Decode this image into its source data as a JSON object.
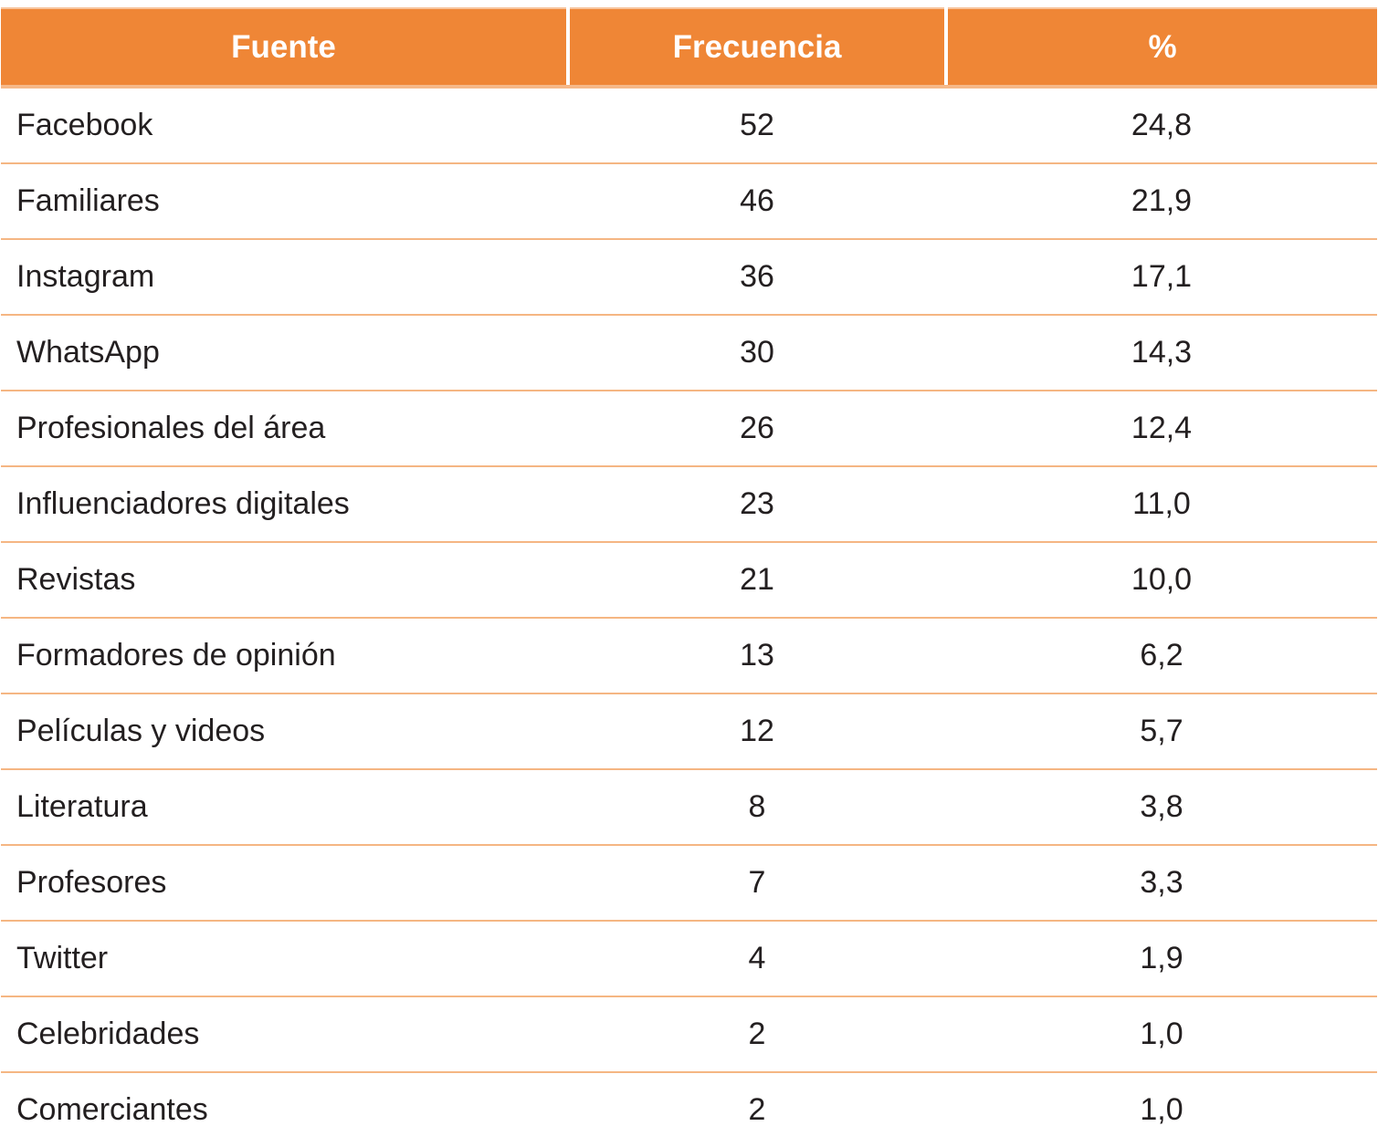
{
  "table": {
    "headers": [
      "Fuente",
      "Frecuencia",
      "%"
    ],
    "rows": [
      {
        "source": "Facebook",
        "frequency": "52",
        "percent": "24,8"
      },
      {
        "source": "Familiares",
        "frequency": "46",
        "percent": "21,9"
      },
      {
        "source": "Instagram",
        "frequency": "36",
        "percent": "17,1"
      },
      {
        "source": "WhatsApp",
        "frequency": "30",
        "percent": "14,3"
      },
      {
        "source": "Profesionales del área",
        "frequency": "26",
        "percent": "12,4"
      },
      {
        "source": "Influenciadores digitales",
        "frequency": "23",
        "percent": "11,0"
      },
      {
        "source": "Revistas",
        "frequency": "21",
        "percent": "10,0"
      },
      {
        "source": "Formadores de opinión",
        "frequency": "13",
        "percent": "6,2"
      },
      {
        "source": "Películas y videos",
        "frequency": "12",
        "percent": "5,7"
      },
      {
        "source": "Literatura",
        "frequency": "8",
        "percent": "3,8"
      },
      {
        "source": "Profesores",
        "frequency": "7",
        "percent": "3,3"
      },
      {
        "source": "Twitter",
        "frequency": "4",
        "percent": "1,9"
      },
      {
        "source": "Celebridades",
        "frequency": "2",
        "percent": "1,0"
      },
      {
        "source": "Comerciantes",
        "frequency": "2",
        "percent": "1,0"
      }
    ]
  },
  "colors": {
    "header_background": "#ef8636",
    "header_text": "#ffffff",
    "row_divider": "#f5b683",
    "body_text": "#231f20"
  }
}
